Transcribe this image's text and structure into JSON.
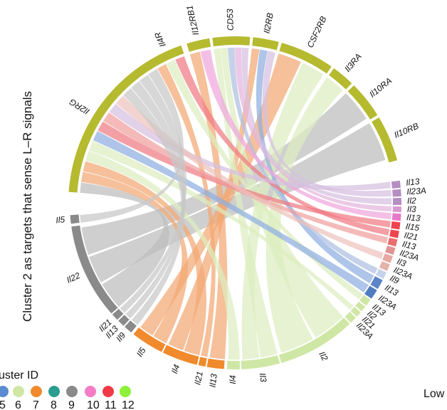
{
  "y_axis_label": "Cluster 2 as targets that sense L–R signals",
  "corner_label": "Low",
  "legend": {
    "title": "uster ID",
    "colors": [
      "#5b8bd0",
      "#cfe7a5",
      "#f08a2c",
      "#2a9d8f",
      "#8a8a8a",
      "#f47cc4",
      "#f03a47",
      "#8ff03a"
    ],
    "numbers": [
      "5",
      "6",
      "7",
      "8",
      "9",
      "10",
      "11",
      "12"
    ]
  },
  "receptors": [
    {
      "name": "Il2RG",
      "color": "#b5ba2f"
    },
    {
      "name": "Il4R",
      "color": "#b5ba2f"
    },
    {
      "name": "Il12RB1",
      "color": "#b5ba2f"
    },
    {
      "name": "CD53",
      "color": "#b5ba2f"
    },
    {
      "name": "Il2RB",
      "color": "#b5ba2f"
    },
    {
      "name": "CSF2RB",
      "color": "#b5ba2f"
    },
    {
      "name": "Il3RA",
      "color": "#b5ba2f"
    },
    {
      "name": "Il10RA",
      "color": "#b5ba2f"
    },
    {
      "name": "Il10RB",
      "color": "#b5ba2f"
    }
  ],
  "ligands": [
    {
      "name": "Il13",
      "color": "#b58ec2"
    },
    {
      "name": "Il23A",
      "color": "#b58ec2"
    },
    {
      "name": "Il2",
      "color": "#b58ec2"
    },
    {
      "name": "Il3",
      "color": "#d89ad0"
    },
    {
      "name": "Il13",
      "color": "#e879c9"
    },
    {
      "name": "Il15",
      "color": "#f0444f"
    },
    {
      "name": "Il21",
      "color": "#f0444f"
    },
    {
      "name": "Il13",
      "color": "#ea6e6e"
    },
    {
      "name": "Il23A",
      "color": "#e29494"
    },
    {
      "name": "Il3",
      "color": "#e6a8a0"
    },
    {
      "name": "Il23A",
      "color": "#e2b4ac"
    },
    {
      "name": "Il9",
      "color": "#c7d3ea"
    },
    {
      "name": "Il13",
      "color": "#5c85c8"
    },
    {
      "name": "Il23A",
      "color": "#4f7dc0"
    },
    {
      "name": "Il13",
      "color": "#cfe7a5"
    },
    {
      "name": "Il2",
      "color": "#cfe7a5"
    },
    {
      "name": "Il21",
      "color": "#cfe7a5"
    },
    {
      "name": "Il23A",
      "color": "#cfe7a5"
    },
    {
      "name": "Il2",
      "color": "#cfe7a5"
    },
    {
      "name": "Il3",
      "color": "#cfe7a5"
    },
    {
      "name": "Il4",
      "color": "#cfe7a5"
    },
    {
      "name": "Il13",
      "color": "#f08a2c"
    },
    {
      "name": "Il21",
      "color": "#f08a2c"
    },
    {
      "name": "Il4",
      "color": "#f08a2c"
    },
    {
      "name": "Il5",
      "color": "#f08a2c"
    },
    {
      "name": "Il9",
      "color": "#8a8a8a"
    },
    {
      "name": "Il13",
      "color": "#8a8a8a"
    },
    {
      "name": "Il21",
      "color": "#8a8a8a"
    },
    {
      "name": "Il22",
      "color": "#8a8a8a"
    },
    {
      "name": "Il5",
      "color": "#8a8a8a"
    }
  ],
  "links": [
    {
      "ligand": 28,
      "receptor": 0,
      "color": "#bdbdbd"
    },
    {
      "ligand": 28,
      "receptor": 8,
      "color": "#bdbdbd"
    },
    {
      "ligand": 28,
      "receptor": 7,
      "color": "#bdbdbd"
    },
    {
      "ligand": 24,
      "receptor": 0,
      "color": "#f3a773"
    },
    {
      "ligand": 24,
      "receptor": 5,
      "color": "#f3a773"
    },
    {
      "ligand": 23,
      "receptor": 0,
      "color": "#f3a773"
    },
    {
      "ligand": 23,
      "receptor": 4,
      "color": "#f3a773"
    },
    {
      "ligand": 22,
      "receptor": 1,
      "color": "#f3a773"
    },
    {
      "ligand": 21,
      "receptor": 2,
      "color": "#f3a773"
    },
    {
      "ligand": 19,
      "receptor": 3,
      "color": "#dcedbf"
    },
    {
      "ligand": 19,
      "receptor": 5,
      "color": "#dcedbf"
    },
    {
      "ligand": 20,
      "receptor": 0,
      "color": "#dcedbf"
    },
    {
      "ligand": 18,
      "receptor": 3,
      "color": "#dcedbf"
    },
    {
      "ligand": 18,
      "receptor": 6,
      "color": "#dcedbf"
    },
    {
      "ligand": 16,
      "receptor": 0,
      "color": "#dcedbf"
    },
    {
      "ligand": 14,
      "receptor": 1,
      "color": "#dcedbf"
    },
    {
      "ligand": 13,
      "receptor": 0,
      "color": "#8faee0"
    },
    {
      "ligand": 12,
      "receptor": 4,
      "color": "#8faee0"
    },
    {
      "ligand": 11,
      "receptor": 3,
      "color": "#aebfe0"
    },
    {
      "ligand": 5,
      "receptor": 0,
      "color": "#f07a82"
    },
    {
      "ligand": 6,
      "receptor": 1,
      "color": "#f07a82"
    },
    {
      "ligand": 7,
      "receptor": 0,
      "color": "#f0a0a0"
    },
    {
      "ligand": 4,
      "receptor": 2,
      "color": "#f0a6dc"
    },
    {
      "ligand": 3,
      "receptor": 3,
      "color": "#e4b4de"
    },
    {
      "ligand": 0,
      "receptor": 0,
      "color": "#d6bfe0"
    },
    {
      "ligand": 1,
      "receptor": 4,
      "color": "#d6bfe0"
    },
    {
      "ligand": 2,
      "receptor": 3,
      "color": "#d6bfe0"
    },
    {
      "ligand": 9,
      "receptor": 0,
      "color": "#eec2bc"
    },
    {
      "ligand": 25,
      "receptor": 0,
      "color": "#c8c8c8"
    },
    {
      "ligand": 26,
      "receptor": 0,
      "color": "#c8c8c8"
    },
    {
      "ligand": 27,
      "receptor": 0,
      "color": "#c8c8c8"
    },
    {
      "ligand": 29,
      "receptor": 0,
      "color": "#c8c8c8"
    }
  ]
}
